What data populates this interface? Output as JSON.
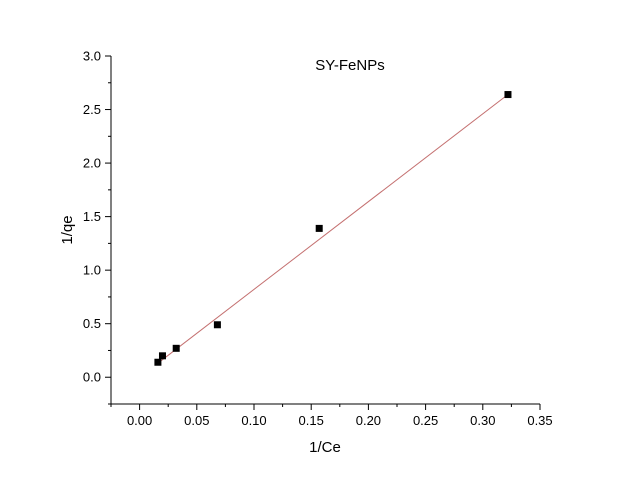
{
  "chart_data": {
    "type": "scatter",
    "title": "SY-FeNPs",
    "xlabel": "1/Ce",
    "ylabel": "1/qe",
    "xlim": [
      -0.025,
      0.35
    ],
    "ylim": [
      -0.25,
      3.0
    ],
    "x_ticks": [
      0.0,
      0.05,
      0.1,
      0.15,
      0.2,
      0.25,
      0.3,
      0.35
    ],
    "x_tick_labels": [
      "0.00",
      "0.05",
      "0.10",
      "0.15",
      "0.20",
      "0.25",
      "0.30",
      "0.35"
    ],
    "y_ticks": [
      0.0,
      0.5,
      1.0,
      1.5,
      2.0,
      2.5,
      3.0
    ],
    "y_tick_labels": [
      "0.0",
      "0.5",
      "1.0",
      "1.5",
      "2.0",
      "2.5",
      "3.0"
    ],
    "grid": false,
    "series": [
      {
        "points": [
          {
            "x": 0.016,
            "y": 0.14
          },
          {
            "x": 0.02,
            "y": 0.2
          },
          {
            "x": 0.032,
            "y": 0.27
          },
          {
            "x": 0.068,
            "y": 0.49
          },
          {
            "x": 0.157,
            "y": 1.39
          },
          {
            "x": 0.322,
            "y": 2.64
          }
        ],
        "marker": "square",
        "color": "#000000"
      }
    ],
    "fit_line": {
      "x_range": [
        0.016,
        0.322
      ],
      "slope": 8.2,
      "intercept": 0.0,
      "color": "#c47070"
    }
  }
}
